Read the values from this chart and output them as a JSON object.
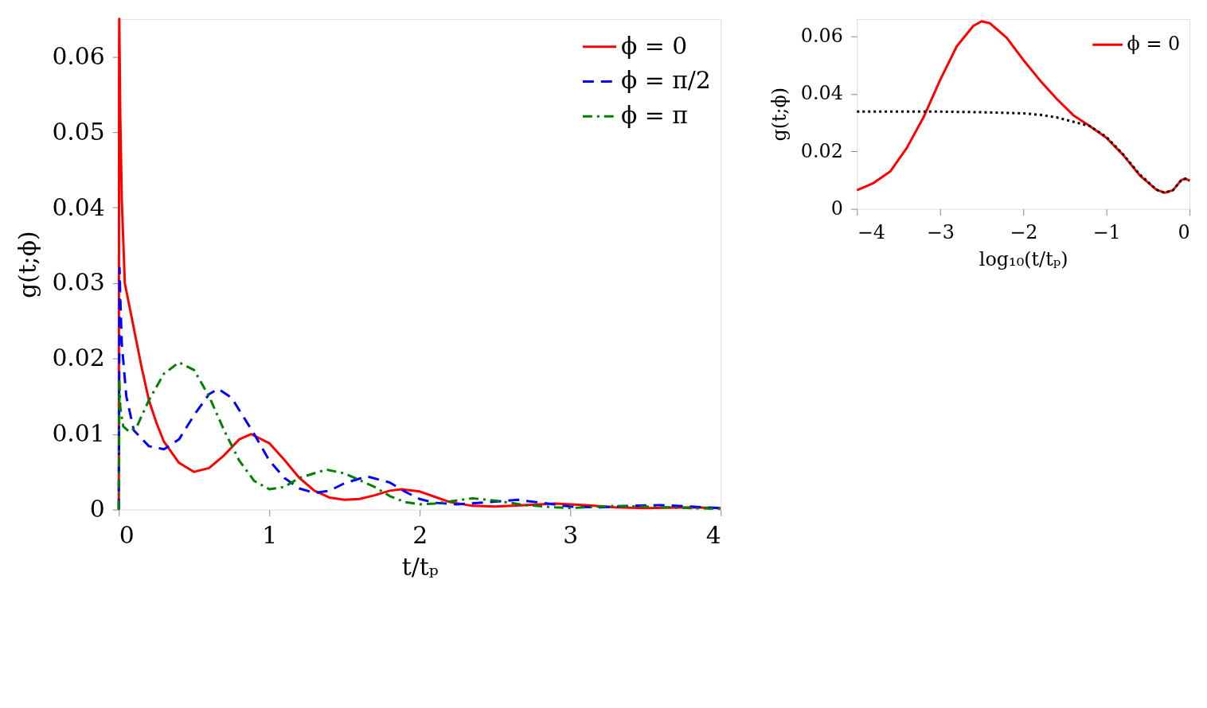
{
  "chart_data": [
    {
      "type": "line",
      "xlabel": "t/tₚ",
      "ylabel": "g(t;ϕ)",
      "xlim": [
        0,
        4
      ],
      "ylim": [
        0,
        0.065
      ],
      "xticks": [
        0,
        1,
        2,
        3,
        4
      ],
      "yticks": [
        0,
        0.01,
        0.02,
        0.03,
        0.04,
        0.05,
        0.06
      ],
      "grid": false,
      "legend": "top right",
      "marker": "none",
      "series": [
        {
          "name": "ϕ = 0",
          "color": "#ff0000",
          "line_style": "solid",
          "x": [
            0,
            0.002,
            0.003,
            0.006,
            0.01,
            0.02,
            0.04,
            0.07,
            0.1,
            0.15,
            0.2,
            0.25,
            0.3,
            0.4,
            0.5,
            0.6,
            0.7,
            0.8,
            0.88,
            1.0,
            1.1,
            1.2,
            1.3,
            1.4,
            1.5,
            1.6,
            1.7,
            1.8,
            1.88,
            2.0,
            2.1,
            2.2,
            2.35,
            2.5,
            2.7,
            2.9,
            3.1,
            3.3,
            3.5,
            3.8,
            4.0
          ],
          "values": [
            0,
            0.062,
            0.065,
            0.06,
            0.052,
            0.041,
            0.03,
            0.027,
            0.024,
            0.019,
            0.0145,
            0.0115,
            0.009,
            0.0062,
            0.005,
            0.0055,
            0.0072,
            0.0093,
            0.01,
            0.0088,
            0.0066,
            0.0042,
            0.0025,
            0.0016,
            0.0013,
            0.0014,
            0.0019,
            0.0025,
            0.0027,
            0.0024,
            0.0017,
            0.001,
            0.0005,
            0.0004,
            0.0006,
            0.0008,
            0.0006,
            0.0003,
            0.0002,
            0.0003,
            0.0002
          ]
        },
        {
          "name": "ϕ = π/2",
          "color": "#0000ff",
          "line_style": "dashed",
          "x": [
            0,
            0.005,
            0.01,
            0.02,
            0.05,
            0.1,
            0.2,
            0.3,
            0.4,
            0.5,
            0.6,
            0.66,
            0.75,
            0.9,
            1.0,
            1.1,
            1.2,
            1.3,
            1.4,
            1.5,
            1.65,
            1.8,
            1.9,
            2.0,
            2.1,
            2.25,
            2.4,
            2.65,
            2.85,
            3.0,
            3.2,
            3.4,
            3.6,
            3.8,
            4.0
          ],
          "values": [
            0,
            0.032,
            0.028,
            0.022,
            0.015,
            0.0105,
            0.0084,
            0.008,
            0.0093,
            0.0125,
            0.0153,
            0.016,
            0.0148,
            0.01,
            0.0065,
            0.0042,
            0.0028,
            0.0022,
            0.0025,
            0.0035,
            0.0044,
            0.0036,
            0.0024,
            0.0014,
            0.0009,
            0.0007,
            0.0009,
            0.0013,
            0.0008,
            0.0004,
            0.0003,
            0.0005,
            0.0006,
            0.0004,
            0.0002
          ]
        },
        {
          "name": "ϕ = π",
          "color": "#008000",
          "line_style": "dashdot",
          "x": [
            0,
            0.004,
            0.01,
            0.03,
            0.07,
            0.12,
            0.2,
            0.3,
            0.4,
            0.5,
            0.6,
            0.7,
            0.8,
            0.9,
            1.0,
            1.1,
            1.2,
            1.38,
            1.5,
            1.7,
            1.8,
            1.9,
            2.0,
            2.1,
            2.35,
            2.5,
            2.7,
            2.9,
            3.0,
            3.3,
            3.5,
            3.8,
            4.0
          ],
          "values": [
            0,
            0.017,
            0.0135,
            0.011,
            0.0103,
            0.011,
            0.0145,
            0.018,
            0.0195,
            0.0185,
            0.015,
            0.0105,
            0.0065,
            0.0038,
            0.0027,
            0.003,
            0.0042,
            0.0053,
            0.0048,
            0.003,
            0.0018,
            0.001,
            0.0007,
            0.0008,
            0.0015,
            0.0012,
            0.0006,
            0.0003,
            0.0002,
            0.0005,
            0.0004,
            0.0002,
            0.0001
          ]
        }
      ]
    },
    {
      "type": "line",
      "xlabel": "log₁₀(t/tₚ)",
      "ylabel": "g(t;ϕ)",
      "xlim": [
        -4,
        0
      ],
      "ylim": [
        0,
        0.066
      ],
      "xticks": [
        -4,
        -3,
        -2,
        -1,
        0
      ],
      "yticks": [
        0,
        0.02,
        0.04,
        0.06
      ],
      "grid": false,
      "legend": "top right",
      "marker": "none",
      "series": [
        {
          "name": "ϕ = 0",
          "color": "#ff0000",
          "line_style": "solid",
          "x": [
            -4,
            -3.8,
            -3.6,
            -3.4,
            -3.2,
            -3.0,
            -2.8,
            -2.6,
            -2.5,
            -2.4,
            -2.2,
            -2.0,
            -1.8,
            -1.6,
            -1.4,
            -1.2,
            -1.0,
            -0.8,
            -0.6,
            -0.4,
            -0.3,
            -0.2,
            -0.1,
            -0.05,
            0
          ],
          "values": [
            0.0065,
            0.009,
            0.013,
            0.0212,
            0.0318,
            0.0448,
            0.0565,
            0.0636,
            0.0652,
            0.0645,
            0.0595,
            0.0518,
            0.0447,
            0.0383,
            0.0326,
            0.0288,
            0.0247,
            0.0188,
            0.0117,
            0.0067,
            0.0056,
            0.0065,
            0.01,
            0.0105,
            0.0098
          ]
        },
        {
          "color": "#000000",
          "line_style": "dotted",
          "x": [
            -4,
            -3,
            -2.5,
            -2,
            -1.8,
            -1.6,
            -1.4,
            -1.2,
            -1.0,
            -0.8,
            -0.6,
            -0.4,
            -0.3,
            -0.2,
            -0.1,
            -0.05,
            0
          ],
          "values": [
            0.0338,
            0.0338,
            0.0336,
            0.0332,
            0.0327,
            0.0318,
            0.0303,
            0.0288,
            0.025,
            0.019,
            0.012,
            0.0067,
            0.0056,
            0.0065,
            0.01,
            0.0105,
            0.0098
          ]
        }
      ]
    }
  ]
}
